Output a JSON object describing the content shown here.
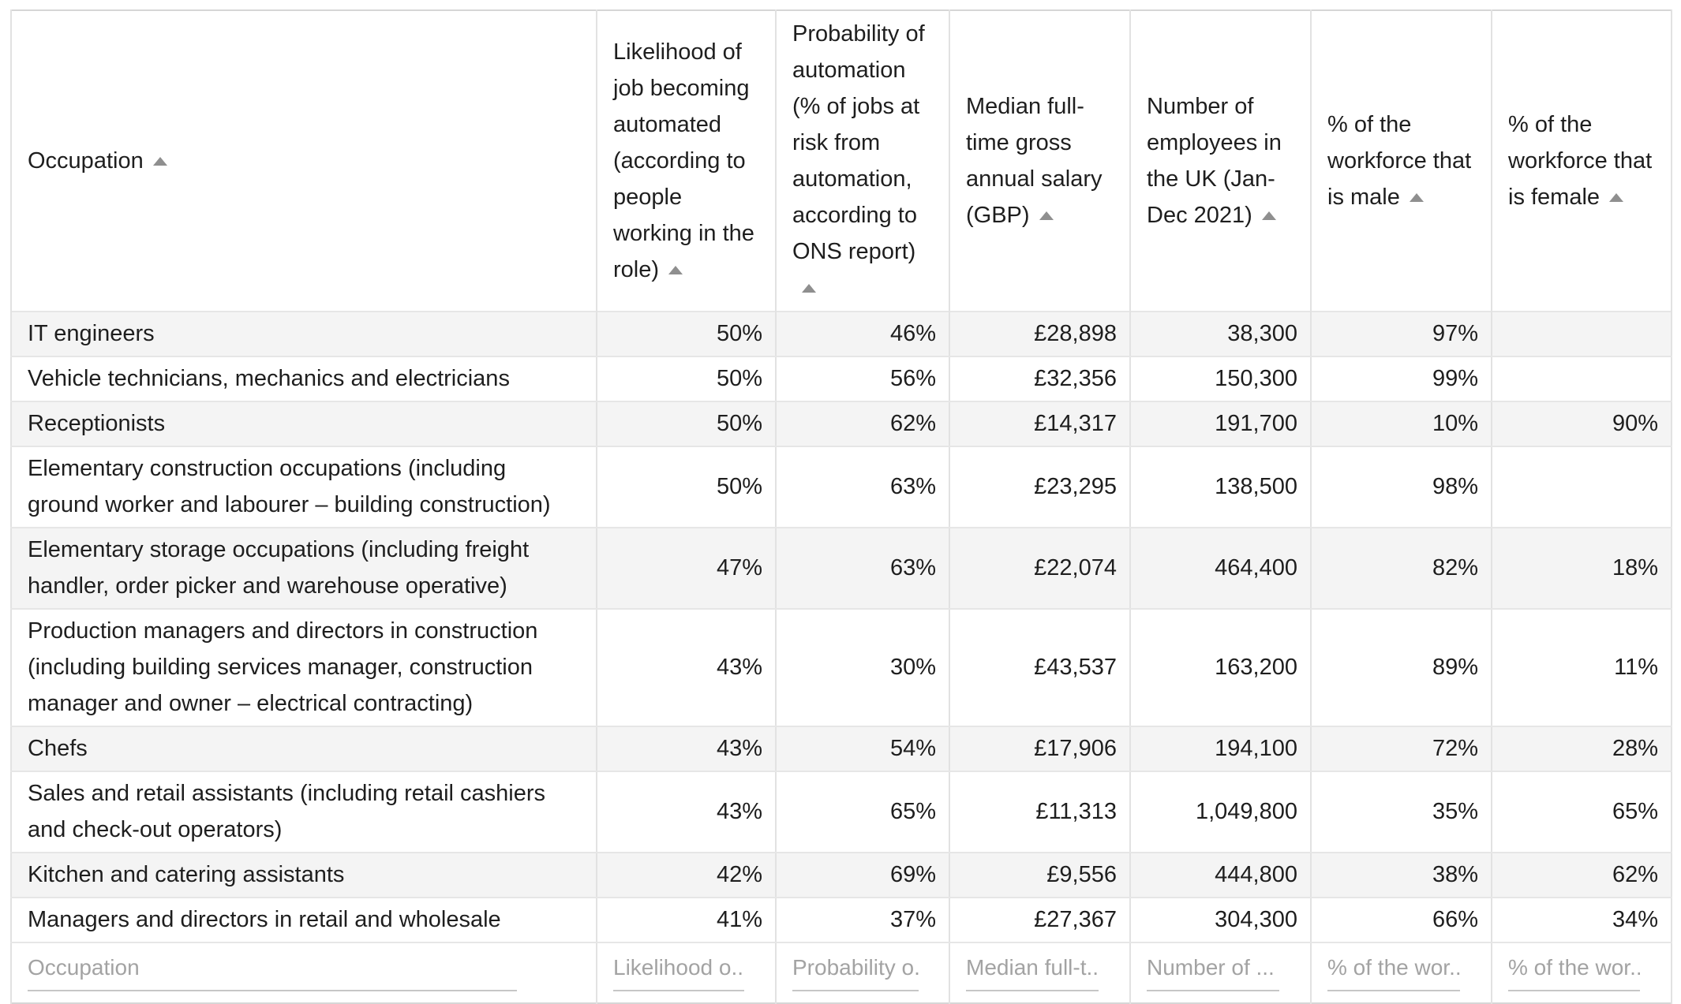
{
  "table": {
    "header": {
      "columns": [
        {
          "label": "Occupation",
          "sort": "asc"
        },
        {
          "label": "Likelihood of job becoming automated (according to people working in the role)",
          "sort": "asc"
        },
        {
          "label": "Probability of automation (% of jobs at risk from automation, according to ONS report)",
          "sort": "asc"
        },
        {
          "label": "Median full-time gross annual salary (GBP)",
          "sort": "asc"
        },
        {
          "label": "Number of employees in the UK (Jan-Dec 2021)",
          "sort": "asc"
        },
        {
          "label": "% of the workforce that is male",
          "sort": "asc"
        },
        {
          "label": "% of the workforce that is female",
          "sort": "asc"
        }
      ]
    },
    "rows": [
      {
        "cells": [
          "IT engineers",
          "50%",
          "46%",
          "£28,898",
          "38,300",
          "97%",
          ""
        ]
      },
      {
        "cells": [
          "Vehicle technicians, mechanics and electricians",
          "50%",
          "56%",
          "£32,356",
          "150,300",
          "99%",
          ""
        ]
      },
      {
        "cells": [
          "Receptionists",
          "50%",
          "62%",
          "£14,317",
          "191,700",
          "10%",
          "90%"
        ]
      },
      {
        "cells": [
          "Elementary construction occupations (including ground worker and labourer – building construction)",
          "50%",
          "63%",
          "£23,295",
          "138,500",
          "98%",
          ""
        ]
      },
      {
        "cells": [
          "Elementary storage occupations (including freight handler, order picker and warehouse operative)",
          "47%",
          "63%",
          "£22,074",
          "464,400",
          "82%",
          "18%"
        ]
      },
      {
        "cells": [
          "Production managers and directors in construction (including building services manager, construction manager and owner – electrical contracting)",
          "43%",
          "30%",
          "£43,537",
          "163,200",
          "89%",
          "11%"
        ]
      },
      {
        "cells": [
          "Chefs",
          "43%",
          "54%",
          "£17,906",
          "194,100",
          "72%",
          "28%"
        ]
      },
      {
        "cells": [
          "Sales and retail assistants (including retail cashiers and check-out operators)",
          "43%",
          "65%",
          "£11,313",
          "1,049,800",
          "35%",
          "65%"
        ]
      },
      {
        "cells": [
          "Kitchen and catering assistants",
          "42%",
          "69%",
          "£9,556",
          "444,800",
          "38%",
          "62%"
        ]
      },
      {
        "cells": [
          "Managers and directors in retail and wholesale",
          "41%",
          "37%",
          "£27,367",
          "304,300",
          "66%",
          "34%"
        ]
      }
    ],
    "filter_placeholders": [
      "Occupation",
      "Likelihood o...",
      "Probability o...",
      "Median full-t...",
      "Number of ...",
      "% of the wor...",
      "% of the wor..."
    ]
  },
  "colors": {
    "stripe": "#f4f4f4",
    "gridline": "#e2e2e2",
    "outer_border": "#d6d6d6",
    "text": "#1e1e1e",
    "placeholder": "#a3a3a3",
    "sort_arrow": "#8f8f8f"
  }
}
